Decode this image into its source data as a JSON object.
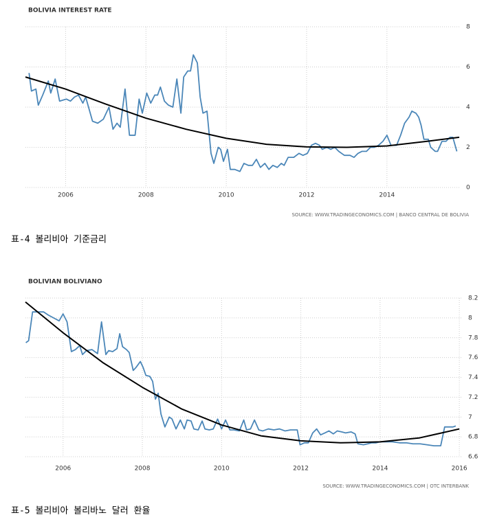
{
  "captions": [
    "표-4 볼리비아 기준금리",
    "표-5 볼리비아 볼리바노 달러 환율"
  ],
  "chart_data": [
    {
      "type": "line",
      "title": "BOLIVIA INTEREST RATE",
      "source": "SOURCE: WWW.TRADINGECONOMICS.COM | BANCO CENTRAL DE BOLIVIA",
      "xlim": [
        2005,
        2015.8
      ],
      "xticks": [
        2006,
        2008,
        2010,
        2012,
        2014
      ],
      "ylim": [
        0,
        8
      ],
      "yticks": [
        0,
        2,
        4,
        6,
        8
      ],
      "grid": true,
      "series": [
        {
          "color": "#4a86b8",
          "x": [
            2005.09,
            2005.15,
            2005.26,
            2005.32,
            2005.43,
            2005.57,
            2005.63,
            2005.74,
            2005.85,
            2006.02,
            2006.12,
            2006.22,
            2006.32,
            2006.43,
            2006.5,
            2006.67,
            2006.8,
            2006.94,
            2007.08,
            2007.18,
            2007.28,
            2007.36,
            2007.48,
            2007.59,
            2007.73,
            2007.83,
            2007.91,
            2008.02,
            2008.12,
            2008.22,
            2008.29,
            2008.36,
            2008.46,
            2008.56,
            2008.67,
            2008.77,
            2008.87,
            2008.94,
            2009.04,
            2009.11,
            2009.18,
            2009.28,
            2009.35,
            2009.42,
            2009.52,
            2009.62,
            2009.69,
            2009.8,
            2009.86,
            2009.93,
            2010.03,
            2010.1,
            2010.21,
            2010.34,
            2010.44,
            2010.55,
            2010.65,
            2010.75,
            2010.85,
            2010.96,
            2011.06,
            2011.16,
            2011.27,
            2011.37,
            2011.44,
            2011.54,
            2011.68,
            2011.81,
            2011.91,
            2012.02,
            2012.12,
            2012.22,
            2012.32,
            2012.39,
            2012.5,
            2012.6,
            2012.7,
            2012.8,
            2012.94,
            2013.08,
            2013.18,
            2013.28,
            2013.38,
            2013.49,
            2013.59,
            2013.69,
            2013.79,
            2013.9,
            2014.0,
            2014.1,
            2014.24,
            2014.34,
            2014.44,
            2014.55,
            2014.62,
            2014.72,
            2014.79,
            2014.85,
            2014.92,
            2015.03,
            2015.09,
            2015.2,
            2015.26,
            2015.37,
            2015.47,
            2015.57,
            2015.64,
            2015.74
          ],
          "values": [
            5.7,
            4.8,
            4.9,
            4.1,
            4.6,
            5.3,
            4.7,
            5.4,
            4.3,
            4.4,
            4.3,
            4.5,
            4.6,
            4.2,
            4.5,
            3.3,
            3.2,
            3.4,
            4.0,
            2.9,
            3.2,
            3.0,
            4.9,
            2.6,
            2.6,
            4.4,
            3.7,
            4.7,
            4.2,
            4.6,
            4.6,
            5.0,
            4.3,
            4.1,
            4.0,
            5.4,
            3.7,
            5.5,
            5.8,
            5.8,
            6.6,
            6.2,
            4.5,
            3.7,
            3.8,
            1.7,
            1.2,
            2.0,
            1.9,
            1.3,
            1.9,
            0.9,
            0.9,
            0.8,
            1.2,
            1.1,
            1.1,
            1.4,
            1.0,
            1.2,
            0.9,
            1.1,
            1.0,
            1.2,
            1.1,
            1.5,
            1.5,
            1.7,
            1.6,
            1.7,
            2.1,
            2.2,
            2.1,
            1.9,
            2.0,
            1.9,
            2.0,
            1.8,
            1.6,
            1.6,
            1.5,
            1.7,
            1.8,
            1.8,
            2.0,
            2.0,
            2.1,
            2.3,
            2.6,
            2.1,
            2.1,
            2.6,
            3.2,
            3.5,
            3.8,
            3.7,
            3.5,
            3.1,
            2.4,
            2.4,
            2.0,
            1.8,
            1.8,
            2.3,
            2.3,
            2.5,
            2.5,
            1.8
          ]
        },
        {
          "color": "#000000",
          "x": [
            2005,
            2006,
            2007,
            2008,
            2009,
            2010,
            2011,
            2012,
            2013,
            2014,
            2015,
            2015.8
          ],
          "values": [
            5.5,
            4.9,
            4.15,
            3.45,
            2.9,
            2.45,
            2.15,
            2.02,
            2.0,
            2.07,
            2.3,
            2.5
          ]
        }
      ]
    },
    {
      "type": "line",
      "title": "BOLIVIAN BOLIVIANO",
      "source": "SOURCE: WWW.TRADINGECONOMICS.COM | OTC INTERBANK",
      "xlim": [
        2005.05,
        2016.05
      ],
      "xticks": [
        2006,
        2008,
        2010,
        2012,
        2014,
        2016
      ],
      "ylim": [
        6.6,
        8.2
      ],
      "yticks": [
        6.6,
        6.8,
        7,
        7.2,
        7.4,
        7.6,
        7.8,
        8,
        8.2
      ],
      "grid": true,
      "series": [
        {
          "color": "#4a86b8",
          "x": [
            2005.06,
            2005.13,
            2005.23,
            2005.37,
            2005.51,
            2005.62,
            2005.76,
            2005.9,
            2006.0,
            2006.1,
            2006.21,
            2006.31,
            2006.42,
            2006.49,
            2006.59,
            2006.73,
            2006.87,
            2006.97,
            2007.08,
            2007.15,
            2007.25,
            2007.36,
            2007.43,
            2007.5,
            2007.6,
            2007.67,
            2007.77,
            2007.84,
            2007.95,
            2008.02,
            2008.09,
            2008.19,
            2008.26,
            2008.33,
            2008.4,
            2008.47,
            2008.57,
            2008.68,
            2008.75,
            2008.85,
            2008.96,
            2009.06,
            2009.13,
            2009.23,
            2009.3,
            2009.41,
            2009.51,
            2009.58,
            2009.69,
            2009.79,
            2009.9,
            2010.0,
            2010.1,
            2010.21,
            2010.31,
            2010.45,
            2010.56,
            2010.63,
            2010.73,
            2010.83,
            2010.94,
            2011.04,
            2011.18,
            2011.32,
            2011.46,
            2011.6,
            2011.74,
            2011.91,
            2011.98,
            2012.09,
            2012.19,
            2012.3,
            2012.4,
            2012.5,
            2012.61,
            2012.71,
            2012.82,
            2012.92,
            2013.03,
            2013.13,
            2013.27,
            2013.37,
            2013.44,
            2013.58,
            2013.69,
            2013.79,
            2013.9,
            2014.0,
            2014.14,
            2014.31,
            2014.49,
            2014.66,
            2014.83,
            2015.01,
            2015.18,
            2015.36,
            2015.53,
            2015.63,
            2015.74,
            2015.84,
            2015.91
          ],
          "values": [
            7.75,
            7.77,
            8.06,
            8.06,
            8.06,
            8.03,
            8.0,
            7.97,
            8.04,
            7.96,
            7.66,
            7.68,
            7.72,
            7.63,
            7.67,
            7.68,
            7.64,
            7.96,
            7.63,
            7.67,
            7.66,
            7.69,
            7.84,
            7.71,
            7.68,
            7.65,
            7.47,
            7.5,
            7.56,
            7.5,
            7.42,
            7.41,
            7.36,
            7.18,
            7.24,
            7.03,
            6.9,
            7.0,
            6.98,
            6.88,
            6.97,
            6.88,
            6.97,
            6.96,
            6.88,
            6.87,
            6.96,
            6.88,
            6.87,
            6.88,
            6.98,
            6.88,
            6.97,
            6.87,
            6.87,
            6.86,
            6.97,
            6.87,
            6.88,
            6.97,
            6.87,
            6.86,
            6.88,
            6.87,
            6.88,
            6.86,
            6.87,
            6.87,
            6.72,
            6.74,
            6.74,
            6.84,
            6.88,
            6.82,
            6.84,
            6.86,
            6.83,
            6.86,
            6.85,
            6.84,
            6.85,
            6.83,
            6.73,
            6.72,
            6.73,
            6.74,
            6.74,
            6.75,
            6.75,
            6.75,
            6.74,
            6.74,
            6.73,
            6.73,
            6.72,
            6.71,
            6.71,
            6.9,
            6.9,
            6.9,
            6.91
          ]
        },
        {
          "color": "#000000",
          "x": [
            2005.05,
            2006,
            2007,
            2008,
            2009,
            2010,
            2011,
            2012,
            2013,
            2014,
            2015,
            2016
          ],
          "values": [
            8.16,
            7.85,
            7.55,
            7.3,
            7.08,
            6.92,
            6.81,
            6.76,
            6.74,
            6.75,
            6.79,
            6.88
          ]
        }
      ]
    }
  ]
}
